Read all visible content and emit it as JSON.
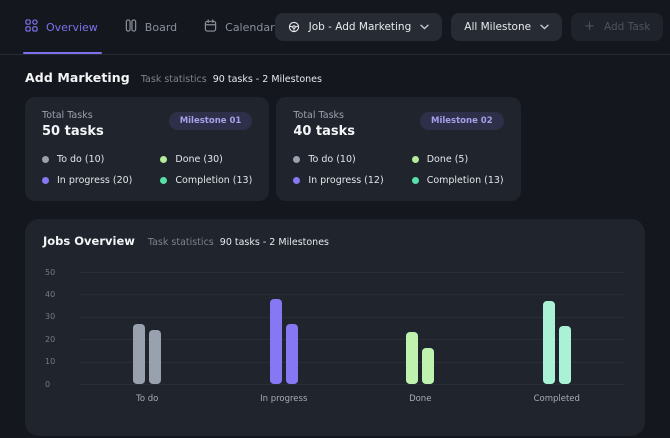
{
  "tabs": [
    {
      "label": "Overview",
      "active": true
    },
    {
      "label": "Board",
      "active": false
    },
    {
      "label": "Calendar",
      "active": false
    }
  ],
  "toolbar": {
    "job_selector_label": "Job - Add Marketing",
    "milestone_selector_label": "All Milestone",
    "add_task_label": "Add Task"
  },
  "section": {
    "title": "Add Marketing",
    "subtitle_label": "Task statistics",
    "subtitle_value": "90 tasks - 2 Milestones"
  },
  "cards": [
    {
      "label": "Total Tasks",
      "count": "50 tasks",
      "badge": "Milestone 01",
      "legend": [
        {
          "name": "To do (10)",
          "color": "#98A1AD"
        },
        {
          "name": "Done (30)",
          "color": "#B3EC9B"
        },
        {
          "name": "In progress (20)",
          "color": "#8678F2"
        },
        {
          "name": "Completion (13)",
          "color": "#57E0A8"
        }
      ]
    },
    {
      "label": "Total Tasks",
      "count": "40 tasks",
      "badge": "Milestone 02",
      "legend": [
        {
          "name": "To do (10)",
          "color": "#98A1AD"
        },
        {
          "name": "Done (5)",
          "color": "#B3EC9B"
        },
        {
          "name": "In progress (12)",
          "color": "#8678F2"
        },
        {
          "name": "Completion (13)",
          "color": "#57E0A8"
        }
      ]
    }
  ],
  "chart_panel": {
    "title": "Jobs Overview",
    "subtitle_label": "Task statistics",
    "subtitle_value": "90 tasks - 2 Milestones"
  },
  "chart_data": {
    "type": "bar",
    "title": "Jobs Overview",
    "categories": [
      "To do",
      "In progress",
      "Done",
      "Completed"
    ],
    "series": [
      {
        "name": "Milestone 01",
        "values": [
          27,
          38,
          23,
          37
        ]
      },
      {
        "name": "Milestone 02",
        "values": [
          24,
          27,
          16,
          26
        ]
      }
    ],
    "category_colors": {
      "To do": "#98A1AD",
      "In progress": "#8678F2",
      "Done": "#BFF2AE",
      "Completed": "#A9F2D6"
    },
    "xlabel": "",
    "ylabel": "",
    "ylim": [
      0,
      50
    ],
    "yticks": [
      0,
      10,
      20,
      30,
      40,
      50
    ],
    "grid": true,
    "legend_position": "none"
  },
  "colors": {
    "accent_purple": "#7B72E9",
    "badge_bg": "#2D3048",
    "badge_text": "#A5A0E9",
    "page_bg": "#14171E",
    "panel_bg": "#1F242D"
  }
}
